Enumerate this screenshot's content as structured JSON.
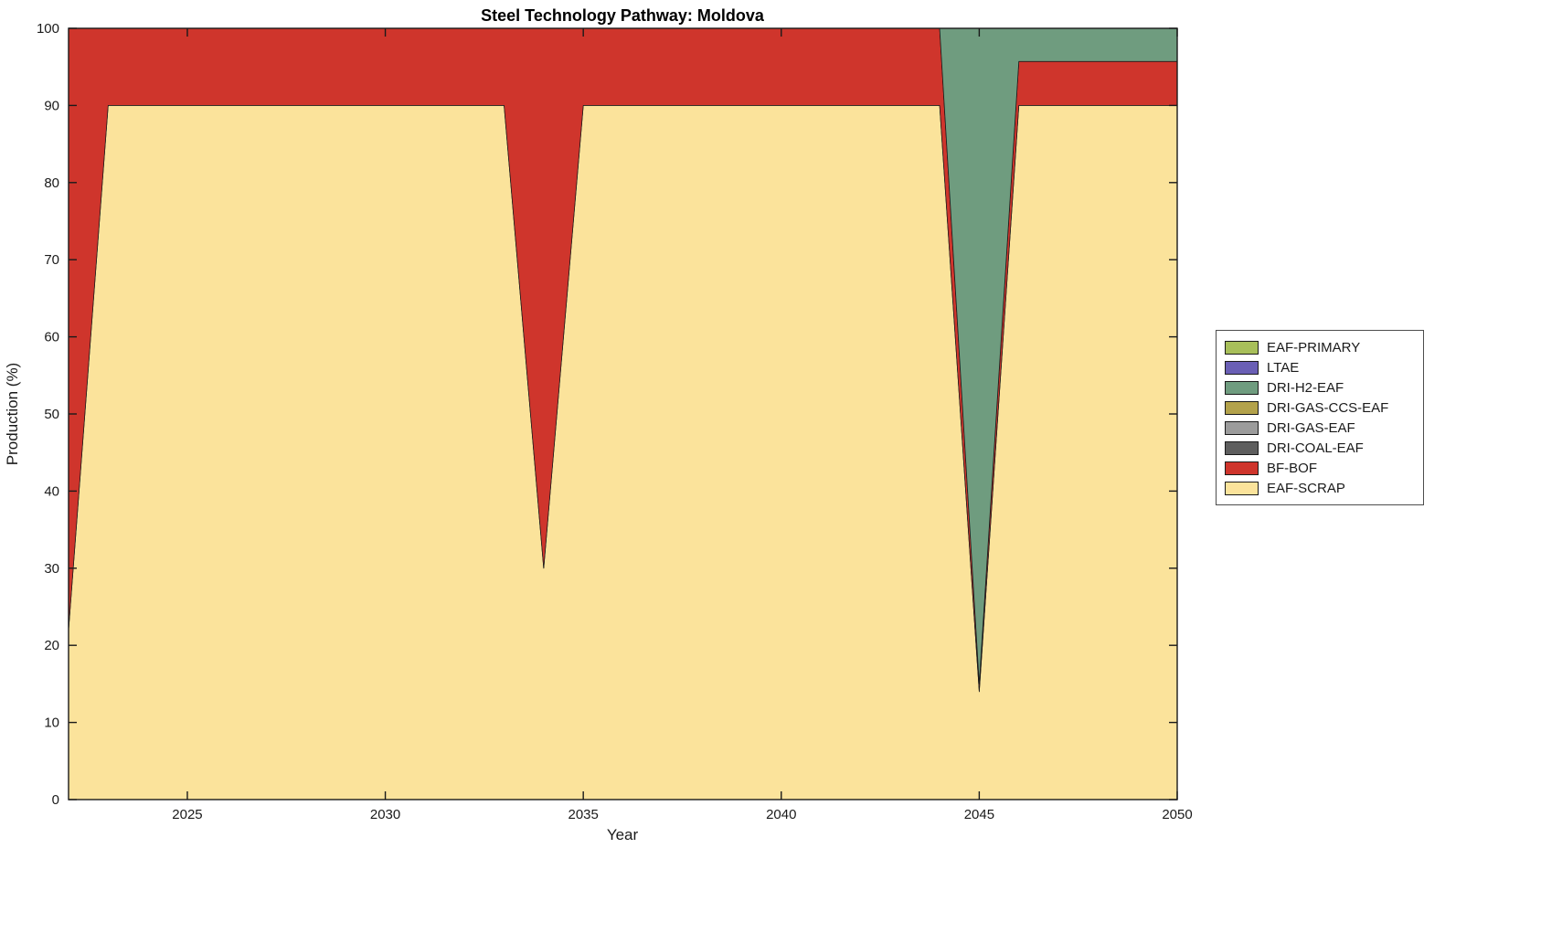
{
  "chart_data": {
    "type": "area",
    "stacked": true,
    "title": "Steel Technology Pathway: Moldova",
    "xlabel": "Year",
    "ylabel": "Production (%)",
    "xlim": [
      2022,
      2050
    ],
    "ylim": [
      0,
      100
    ],
    "xticks": [
      2025,
      2030,
      2035,
      2040,
      2045,
      2050
    ],
    "yticks": [
      0,
      10,
      20,
      30,
      40,
      50,
      60,
      70,
      80,
      90,
      100
    ],
    "grid": false,
    "x": [
      2022,
      2023,
      2024,
      2025,
      2026,
      2027,
      2028,
      2029,
      2030,
      2031,
      2032,
      2033,
      2034,
      2035,
      2036,
      2037,
      2038,
      2039,
      2040,
      2041,
      2042,
      2043,
      2044,
      2045,
      2046,
      2047,
      2048,
      2049,
      2050
    ],
    "series": [
      {
        "name": "EAF-SCRAP",
        "color": "#FBE39B",
        "values": [
          22,
          90,
          90,
          90,
          90,
          90,
          90,
          90,
          90,
          90,
          90,
          90,
          30,
          90,
          90,
          90,
          90,
          90,
          90,
          90,
          90,
          90,
          90,
          14,
          90,
          90,
          90,
          90,
          90
        ]
      },
      {
        "name": "BF-BOF",
        "color": "#CF352C",
        "values": [
          78,
          10,
          10,
          10,
          10,
          10,
          10,
          10,
          10,
          10,
          10,
          10,
          70,
          10,
          10,
          10,
          10,
          10,
          10,
          10,
          10,
          10,
          10,
          1,
          5.7,
          5.7,
          5.7,
          5.7,
          5.7
        ]
      },
      {
        "name": "DRI-COAL-EAF",
        "color": "#5E5E5E",
        "values": [
          0,
          0,
          0,
          0,
          0,
          0,
          0,
          0,
          0,
          0,
          0,
          0,
          0,
          0,
          0,
          0,
          0,
          0,
          0,
          0,
          0,
          0,
          0,
          0,
          0,
          0,
          0,
          0,
          0
        ]
      },
      {
        "name": "DRI-GAS-EAF",
        "color": "#9C9C9C",
        "values": [
          0,
          0,
          0,
          0,
          0,
          0,
          0,
          0,
          0,
          0,
          0,
          0,
          0,
          0,
          0,
          0,
          0,
          0,
          0,
          0,
          0,
          0,
          0,
          0,
          0,
          0,
          0,
          0,
          0
        ]
      },
      {
        "name": "DRI-GAS-CCS-EAF",
        "color": "#B3A24B",
        "values": [
          0,
          0,
          0,
          0,
          0,
          0,
          0,
          0,
          0,
          0,
          0,
          0,
          0,
          0,
          0,
          0,
          0,
          0,
          0,
          0,
          0,
          0,
          0,
          0,
          0,
          0,
          0,
          0,
          0
        ]
      },
      {
        "name": "DRI-H2-EAF",
        "color": "#6F9C7F",
        "values": [
          0,
          0,
          0,
          0,
          0,
          0,
          0,
          0,
          0,
          0,
          0,
          0,
          0,
          0,
          0,
          0,
          0,
          0,
          0,
          0,
          0,
          0,
          0,
          85,
          4.3,
          4.3,
          4.3,
          4.3,
          4.3
        ]
      },
      {
        "name": "LTAE",
        "color": "#6A5FB5",
        "values": [
          0,
          0,
          0,
          0,
          0,
          0,
          0,
          0,
          0,
          0,
          0,
          0,
          0,
          0,
          0,
          0,
          0,
          0,
          0,
          0,
          0,
          0,
          0,
          0,
          0,
          0,
          0,
          0,
          0
        ]
      },
      {
        "name": "EAF-PRIMARY",
        "color": "#A8BF5A",
        "values": [
          0,
          0,
          0,
          0,
          0,
          0,
          0,
          0,
          0,
          0,
          0,
          0,
          0,
          0,
          0,
          0,
          0,
          0,
          0,
          0,
          0,
          0,
          0,
          0,
          0,
          0,
          0,
          0,
          0
        ]
      }
    ],
    "legend": {
      "position": "right-outside",
      "items": [
        {
          "label": "EAF-PRIMARY",
          "color": "#A8BF5A"
        },
        {
          "label": "LTAE",
          "color": "#6A5FB5"
        },
        {
          "label": "DRI-H2-EAF",
          "color": "#6F9C7F"
        },
        {
          "label": "DRI-GAS-CCS-EAF",
          "color": "#B3A24B"
        },
        {
          "label": "DRI-GAS-EAF",
          "color": "#9C9C9C"
        },
        {
          "label": "DRI-COAL-EAF",
          "color": "#5E5E5E"
        },
        {
          "label": "BF-BOF",
          "color": "#CF352C"
        },
        {
          "label": "EAF-SCRAP",
          "color": "#FBE39B"
        }
      ]
    }
  }
}
